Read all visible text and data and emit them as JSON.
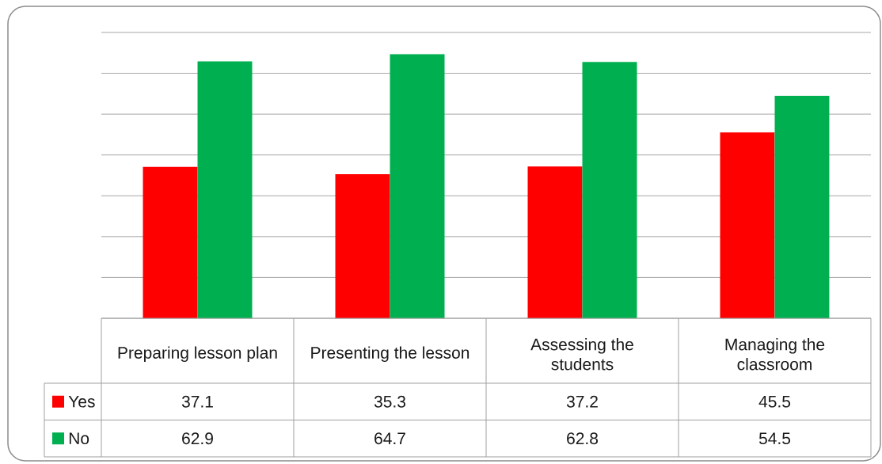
{
  "chart_data": {
    "type": "bar",
    "categories": [
      "Preparing lesson plan",
      "Presenting the lesson",
      "Assessing the students",
      "Managing the classroom"
    ],
    "series": [
      {
        "name": "Yes",
        "color": "#ff0000",
        "values": [
          37.1,
          35.3,
          37.2,
          45.5
        ]
      },
      {
        "name": "No",
        "color": "#00b050",
        "values": [
          62.9,
          64.7,
          62.8,
          54.5
        ]
      }
    ],
    "ylim": [
      0,
      70
    ],
    "yticks": [
      {
        "value": 0,
        "label": null
      },
      {
        "value": 10,
        "label": null
      },
      {
        "value": 20,
        "label": null
      },
      {
        "value": 30,
        "label": null
      },
      {
        "value": 40,
        "label": null
      },
      {
        "value": 50,
        "label": null
      },
      {
        "value": 60,
        "label": null
      },
      {
        "value": 70,
        "label": null
      }
    ],
    "grid": "y",
    "legend": "bottom",
    "data_labels": true,
    "tick_labels": "x"
  }
}
